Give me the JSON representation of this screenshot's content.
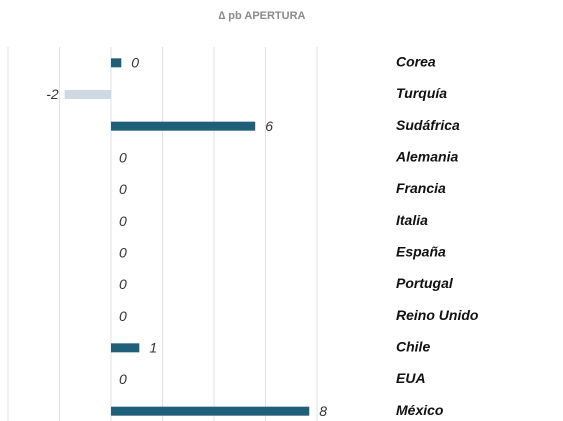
{
  "chart_data": {
    "type": "hbar",
    "title": "∆ pb APERTURA",
    "categories": [
      "Corea",
      "Turquía",
      "Sudáfrica",
      "Alemania",
      "Francia",
      "Italia",
      "España",
      "Portugal",
      "Reino Unido",
      "Chile",
      "EUA",
      "México"
    ],
    "values": [
      0.4,
      -1.8,
      5.6,
      0,
      0,
      0,
      0,
      0,
      0,
      1.1,
      0,
      7.7
    ],
    "value_labels": [
      "0",
      "-2",
      "6",
      "0",
      "0",
      "0",
      "0",
      "0",
      "0",
      "1",
      "0",
      "8"
    ],
    "color": "#1f5f7a",
    "negative_color": "#cfd9e3",
    "xlim": [
      -4,
      10
    ],
    "xticks": [
      -4,
      -2,
      0,
      2,
      4,
      6,
      8
    ],
    "grid": true
  }
}
